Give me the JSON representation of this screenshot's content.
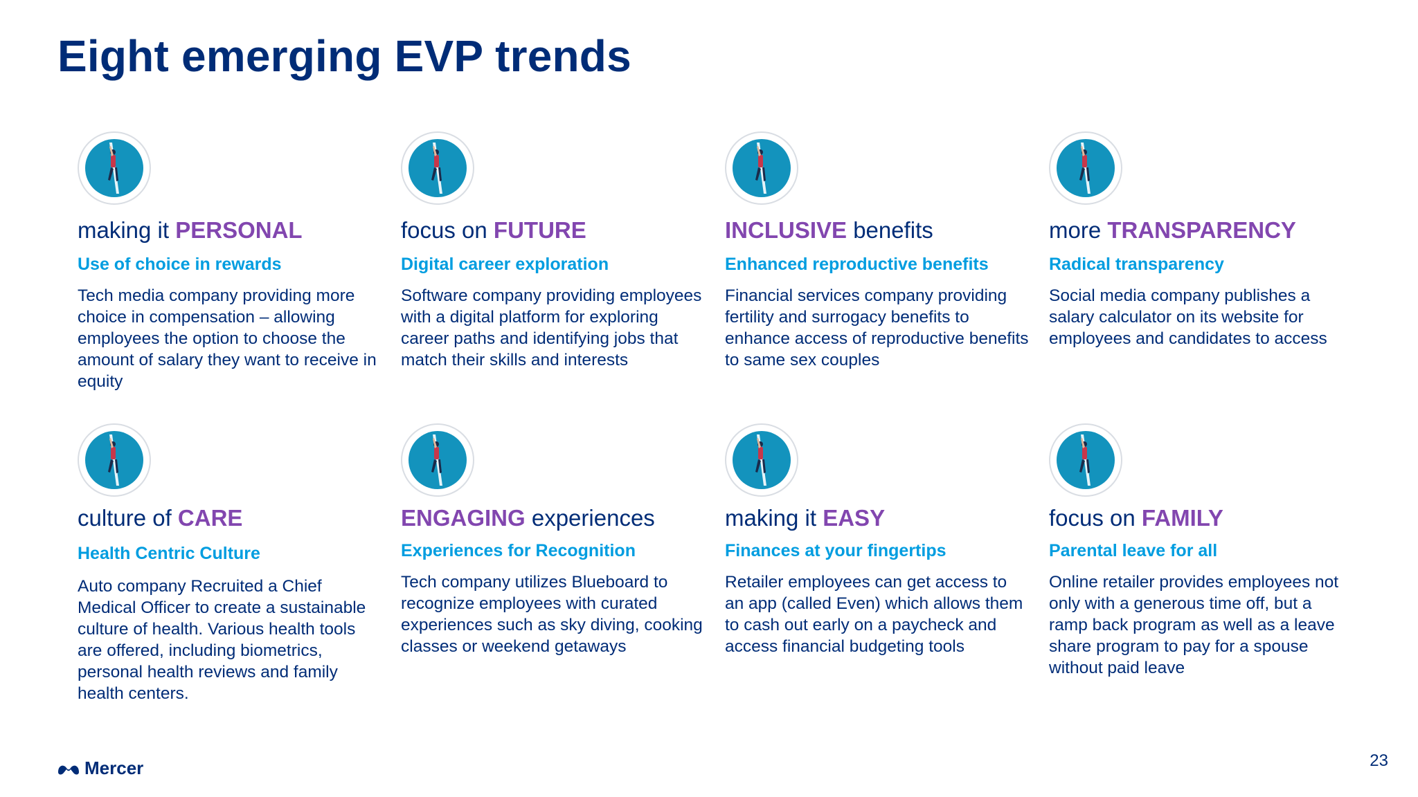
{
  "title": "Eight emerging EVP trends",
  "trends": [
    {
      "prefix": "making it ",
      "highlight": "PERSONAL",
      "suffix": "",
      "subtitle": "Use of choice in rewards",
      "description": "Tech media company providing more choice in compensation – allowing employees the option to choose the amount of salary they want to receive in equity"
    },
    {
      "prefix": "focus on ",
      "highlight": "FUTURE",
      "suffix": "",
      "subtitle": "Digital career exploration",
      "description": "Software company providing employees with a digital platform for exploring career paths and identifying jobs that match their skills and interests"
    },
    {
      "prefix": "",
      "highlight": "INCLUSIVE",
      "suffix": " benefits",
      "subtitle": "Enhanced reproductive benefits",
      "description": "Financial services company providing fertility and surrogacy benefits to enhance access of reproductive benefits to same sex couples"
    },
    {
      "prefix": "more ",
      "highlight": "TRANSPARENCY",
      "suffix": "",
      "subtitle": "Radical transparency",
      "description": "Social media company publishes a salary calculator on its website for employees and candidates to access"
    },
    {
      "prefix": "culture of ",
      "highlight": "CARE",
      "suffix": "",
      "subtitle": "Health Centric Culture",
      "description": "Auto company Recruited a Chief Medical Officer to create a sustainable culture of health. Various health tools are offered, including biometrics, personal health reviews and family health centers."
    },
    {
      "prefix": "",
      "highlight": "ENGAGING",
      "suffix": " experiences",
      "subtitle": "Experiences for Recognition",
      "description": "Tech company utilizes Blueboard to recognize employees with curated experiences such as sky diving, cooking classes or weekend getaways"
    },
    {
      "prefix": "making it ",
      "highlight": "EASY",
      "suffix": "",
      "subtitle": "Finances at your fingertips",
      "description": "Retailer employees can get access to an app (called Even) which allows them to cash out early on a paycheck and access financial budgeting tools"
    },
    {
      "prefix": "focus on ",
      "highlight": "FAMILY",
      "suffix": "",
      "subtitle": "Parental leave for all",
      "description": "Online retailer provides employees not only with a generous time off, but a ramp back program as well as a leave share program to pay for a spouse without paid leave"
    }
  ],
  "logo_text": "Mercer",
  "page_number": "23",
  "colors": {
    "title": "#002C77",
    "highlight": "#8246AF",
    "subtitle": "#009DE0",
    "icon_circle": "#1393BD"
  },
  "icon_name": "climber-icon"
}
